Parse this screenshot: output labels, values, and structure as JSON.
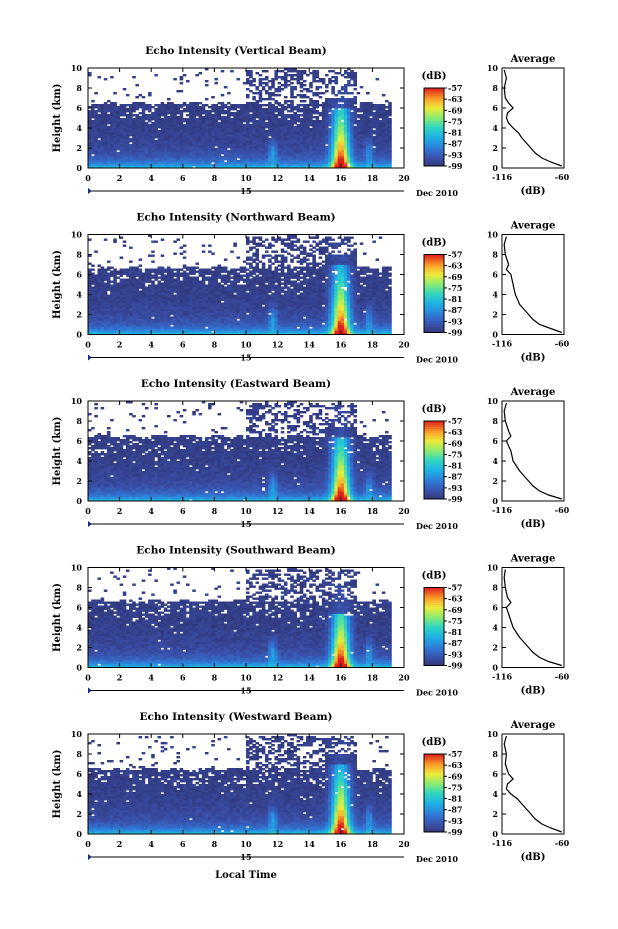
{
  "chart_data": [
    {
      "type": "heatmap",
      "title": "Echo Intensity (Vertical Beam)",
      "ylabel": "Height (km)",
      "xlim": [
        0,
        20
      ],
      "ylim": [
        0,
        10
      ],
      "x_ticks": [
        0,
        2,
        4,
        6,
        8,
        10,
        12,
        14,
        16,
        18,
        20
      ],
      "y_ticks": [
        0,
        2,
        4,
        6,
        8,
        10
      ],
      "date_day": "15",
      "date_label": "Dec 2010",
      "colorbar": {
        "label": "(dB)",
        "ticks": [
          -57,
          -63,
          -69,
          -75,
          -81,
          -87,
          -93,
          -99
        ],
        "range": [
          -99,
          -57
        ]
      },
      "storm": {
        "x": 16.0,
        "top_km": 6.0,
        "core_km": 1.5,
        "peak_db": -57
      },
      "average_profile": {
        "title": "Average",
        "xlabel": "(dB)",
        "xlim": [
          -116,
          -60
        ],
        "x_ticks": [
          -116,
          -60
        ],
        "ylim": [
          0,
          10
        ],
        "y_ticks": [
          0,
          2,
          4,
          6,
          8,
          10
        ],
        "height_km": [
          0.2,
          0.6,
          1.0,
          1.5,
          2.0,
          2.5,
          3.0,
          3.5,
          4.0,
          4.5,
          5.0,
          5.5,
          6.0,
          6.5,
          7.0,
          8.0,
          9.0,
          9.8
        ],
        "db": [
          -62,
          -72,
          -80,
          -86,
          -90,
          -94,
          -98,
          -101,
          -106,
          -110,
          -112,
          -111,
          -106,
          -110,
          -113,
          -114,
          -112,
          -114
        ]
      }
    },
    {
      "type": "heatmap",
      "title": "Echo Intensity (Northward Beam)",
      "ylabel": "Height (km)",
      "xlim": [
        0,
        20
      ],
      "ylim": [
        0,
        10
      ],
      "x_ticks": [
        0,
        2,
        4,
        6,
        8,
        10,
        12,
        14,
        16,
        18,
        20
      ],
      "y_ticks": [
        0,
        2,
        4,
        6,
        8,
        10
      ],
      "date_day": "15",
      "date_label": "Dec 2010",
      "colorbar": {
        "label": "(dB)",
        "ticks": [
          -57,
          -63,
          -69,
          -75,
          -81,
          -87,
          -93,
          -99
        ],
        "range": [
          -99,
          -57
        ]
      },
      "storm": {
        "x": 16.0,
        "top_km": 7.0,
        "core_km": 1.5,
        "peak_db": -57
      },
      "average_profile": {
        "title": "Average",
        "xlabel": "(dB)",
        "xlim": [
          -116,
          -60
        ],
        "x_ticks": [
          -116,
          -60
        ],
        "ylim": [
          0,
          10
        ],
        "y_ticks": [
          0,
          2,
          4,
          6,
          8,
          10
        ],
        "height_km": [
          0.2,
          0.6,
          1.0,
          1.5,
          2.0,
          2.5,
          3.0,
          3.5,
          4.0,
          5.0,
          6.0,
          6.5,
          7.0,
          8.0,
          9.0,
          9.8
        ],
        "db": [
          -62,
          -72,
          -82,
          -88,
          -92,
          -96,
          -100,
          -102,
          -104,
          -106,
          -108,
          -112,
          -110,
          -113,
          -114,
          -112
        ]
      }
    },
    {
      "type": "heatmap",
      "title": "Echo Intensity (Eastward Beam)",
      "ylabel": "Height (km)",
      "xlim": [
        0,
        20
      ],
      "ylim": [
        0,
        10
      ],
      "x_ticks": [
        0,
        2,
        4,
        6,
        8,
        10,
        12,
        14,
        16,
        18,
        20
      ],
      "y_ticks": [
        0,
        2,
        4,
        6,
        8,
        10
      ],
      "date_day": "15",
      "date_label": "Dec 2010",
      "colorbar": {
        "label": "(dB)",
        "ticks": [
          -57,
          -63,
          -69,
          -75,
          -81,
          -87,
          -93,
          -99
        ],
        "range": [
          -99,
          -57
        ]
      },
      "storm": {
        "x": 16.0,
        "top_km": 6.5,
        "core_km": 1.5,
        "peak_db": -57
      },
      "average_profile": {
        "title": "Average",
        "xlabel": "(dB)",
        "xlim": [
          -116,
          -60
        ],
        "x_ticks": [
          -116,
          -60
        ],
        "ylim": [
          0,
          10
        ],
        "y_ticks": [
          0,
          2,
          4,
          6,
          8,
          10
        ],
        "height_km": [
          0.2,
          0.6,
          1.0,
          1.5,
          2.0,
          2.5,
          3.0,
          3.5,
          4.0,
          5.0,
          6.0,
          6.5,
          7.0,
          8.0,
          9.0,
          9.8
        ],
        "db": [
          -62,
          -74,
          -82,
          -88,
          -92,
          -96,
          -100,
          -103,
          -106,
          -108,
          -112,
          -108,
          -110,
          -113,
          -114,
          -112
        ]
      }
    },
    {
      "type": "heatmap",
      "title": "Echo Intensity (Southward Beam)",
      "ylabel": "Height (km)",
      "xlim": [
        0,
        20
      ],
      "ylim": [
        0,
        10
      ],
      "x_ticks": [
        0,
        2,
        4,
        6,
        8,
        10,
        12,
        14,
        16,
        18,
        20
      ],
      "y_ticks": [
        0,
        2,
        4,
        6,
        8,
        10
      ],
      "date_day": "15",
      "date_label": "Dec 2010",
      "colorbar": {
        "label": "(dB)",
        "ticks": [
          -57,
          -63,
          -69,
          -75,
          -81,
          -87,
          -93,
          -99
        ],
        "range": [
          -99,
          -57
        ]
      },
      "storm": {
        "x": 16.0,
        "top_km": 5.5,
        "core_km": 1.2,
        "peak_db": -57
      },
      "average_profile": {
        "title": "Average",
        "xlabel": "(dB)",
        "xlim": [
          -116,
          -60
        ],
        "x_ticks": [
          -116,
          -60
        ],
        "ylim": [
          0,
          10
        ],
        "y_ticks": [
          0,
          2,
          4,
          6,
          8,
          10
        ],
        "height_km": [
          0.2,
          0.6,
          1.0,
          1.5,
          2.0,
          2.5,
          3.0,
          3.5,
          4.0,
          5.0,
          6.0,
          6.5,
          7.0,
          8.0,
          9.0,
          9.8
        ],
        "db": [
          -62,
          -74,
          -82,
          -88,
          -92,
          -96,
          -100,
          -103,
          -106,
          -109,
          -112,
          -108,
          -111,
          -113,
          -114,
          -113
        ]
      }
    },
    {
      "type": "heatmap",
      "title": "Echo Intensity (Westward Beam)",
      "ylabel": "Height (km)",
      "xlabel": "Local Time",
      "xlim": [
        0,
        20
      ],
      "ylim": [
        0,
        10
      ],
      "x_ticks": [
        0,
        2,
        4,
        6,
        8,
        10,
        12,
        14,
        16,
        18,
        20
      ],
      "y_ticks": [
        0,
        2,
        4,
        6,
        8,
        10
      ],
      "date_day": "15",
      "date_label": "Dec 2010",
      "colorbar": {
        "label": "(dB)",
        "ticks": [
          -57,
          -63,
          -69,
          -75,
          -81,
          -87,
          -93,
          -99
        ],
        "range": [
          -99,
          -57
        ]
      },
      "storm": {
        "x": 16.0,
        "top_km": 7.0,
        "core_km": 1.5,
        "peak_db": -57
      },
      "average_profile": {
        "title": "Average",
        "xlabel": "(dB)",
        "xlim": [
          -116,
          -60
        ],
        "x_ticks": [
          -116,
          -60
        ],
        "ylim": [
          0,
          10
        ],
        "y_ticks": [
          0,
          2,
          4,
          6,
          8,
          10
        ],
        "height_km": [
          0.2,
          0.6,
          1.0,
          1.5,
          2.0,
          2.5,
          3.0,
          3.5,
          4.0,
          4.5,
          5.0,
          5.5,
          6.0,
          7.0,
          8.0,
          9.0,
          9.8
        ],
        "db": [
          -62,
          -72,
          -80,
          -86,
          -90,
          -94,
          -98,
          -102,
          -108,
          -112,
          -111,
          -106,
          -110,
          -113,
          -112,
          -114,
          -112
        ]
      }
    }
  ]
}
